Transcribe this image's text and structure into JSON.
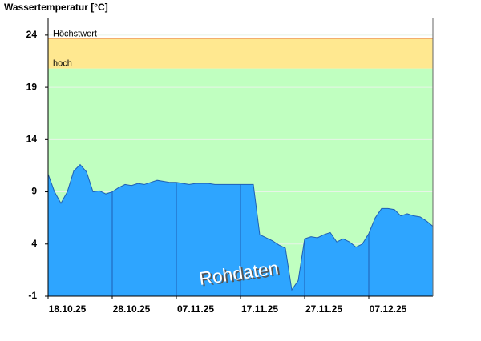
{
  "chart_data": {
    "type": "area",
    "title": "Wassertemperatur [°C]",
    "watermark": "Rohdaten",
    "background": "#c0ffc0",
    "color": "#2ea5ff",
    "line_color": "#1f5fb5",
    "thresholds": [
      {
        "label": "Höchstwert",
        "value": 23.7,
        "color": "#cc0000"
      },
      {
        "label": "hoch",
        "value": 20.8,
        "color": "#ffe890"
      }
    ],
    "xlim": [
      "2025-10-18",
      "2025-12-17"
    ],
    "xticks": [
      {
        "value": "2025-10-18",
        "label": "18.10.25"
      },
      {
        "value": "2025-10-28",
        "label": "28.10.25"
      },
      {
        "value": "2025-11-07",
        "label": "07.11.25"
      },
      {
        "value": "2025-11-17",
        "label": "17.11.25"
      },
      {
        "value": "2025-11-27",
        "label": "27.11.25"
      },
      {
        "value": "2025-12-07",
        "label": "07.12.25"
      }
    ],
    "ylim": [
      -1,
      25.6
    ],
    "yticks": [
      -1,
      4,
      9,
      14,
      19,
      24
    ],
    "grid": true,
    "x": [
      "2025-10-18",
      "2025-10-19",
      "2025-10-20",
      "2025-10-21",
      "2025-10-22",
      "2025-10-23",
      "2025-10-24",
      "2025-10-25",
      "2025-10-26",
      "2025-10-27",
      "2025-10-28",
      "2025-10-29",
      "2025-10-30",
      "2025-10-31",
      "2025-11-01",
      "2025-11-02",
      "2025-11-03",
      "2025-11-04",
      "2025-11-05",
      "2025-11-06",
      "2025-11-07",
      "2025-11-08",
      "2025-11-09",
      "2025-11-10",
      "2025-11-11",
      "2025-11-12",
      "2025-11-13",
      "2025-11-14",
      "2025-11-15",
      "2025-11-16",
      "2025-11-17",
      "2025-11-18",
      "2025-11-19",
      "2025-11-20",
      "2025-11-21",
      "2025-11-22",
      "2025-11-23",
      "2025-11-24",
      "2025-11-25",
      "2025-11-26",
      "2025-11-27",
      "2025-11-28",
      "2025-11-29",
      "2025-11-30",
      "2025-12-01",
      "2025-12-02",
      "2025-12-03",
      "2025-12-04",
      "2025-12-05",
      "2025-12-06",
      "2025-12-07",
      "2025-12-08",
      "2025-12-09",
      "2025-12-10",
      "2025-12-11",
      "2025-12-12",
      "2025-12-13",
      "2025-12-14",
      "2025-12-15",
      "2025-12-16",
      "2025-12-17"
    ],
    "values": [
      10.7,
      9.0,
      7.9,
      9.0,
      11.0,
      11.6,
      10.9,
      9.0,
      9.1,
      8.8,
      9.0,
      9.4,
      9.7,
      9.6,
      9.8,
      9.7,
      9.9,
      10.1,
      10.0,
      9.9,
      9.9,
      9.8,
      9.7,
      9.8,
      9.8,
      9.8,
      9.7,
      9.7,
      9.7,
      9.7,
      9.7,
      9.7,
      9.7,
      4.9,
      4.6,
      4.3,
      3.9,
      3.6,
      -0.4,
      0.5,
      4.5,
      4.7,
      4.6,
      4.9,
      5.1,
      4.2,
      4.5,
      4.2,
      3.7,
      4.0,
      5.0,
      6.5,
      7.4,
      7.4,
      7.3,
      6.7,
      6.9,
      6.7,
      6.6,
      6.2,
      5.7
    ]
  }
}
